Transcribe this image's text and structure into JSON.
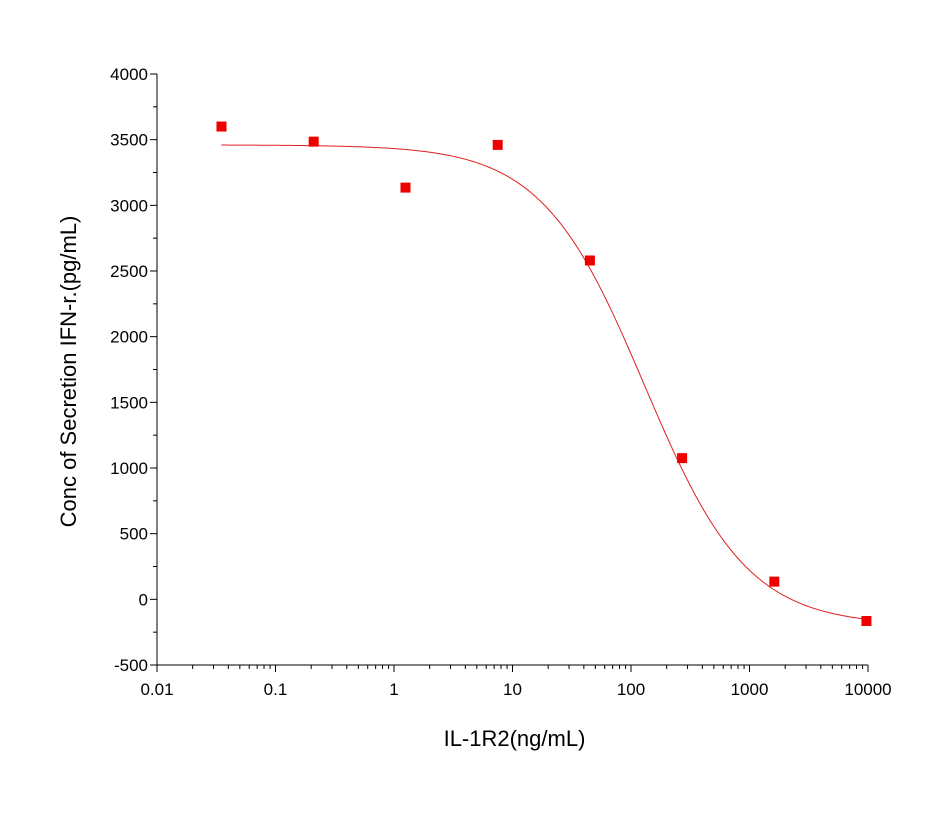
{
  "chart_data": {
    "type": "scatter",
    "xlabel": "IL-1R2(ng/mL)",
    "ylabel": "Conc of Secretion IFN-r.(pg/mL)",
    "xscale": "log",
    "xlim": [
      0.01,
      10000
    ],
    "ylim": [
      -500,
      4000
    ],
    "x_ticks": [
      0.01,
      0.1,
      1,
      10,
      100,
      1000,
      10000
    ],
    "x_tick_labels": [
      "0.01",
      "0.1",
      "1",
      "10",
      "100",
      "1000",
      "10000"
    ],
    "y_ticks": [
      -500,
      0,
      500,
      1000,
      1500,
      2000,
      2500,
      3000,
      3500,
      4000
    ],
    "y_tick_labels": [
      "-500",
      "0",
      "500",
      "1000",
      "1500",
      "2000",
      "2500",
      "3000",
      "3500",
      "4000"
    ],
    "grid": false,
    "points": {
      "x": [
        0.035,
        0.21,
        1.25,
        7.5,
        45,
        270,
        1620,
        9700
      ],
      "y": [
        3600,
        3485,
        3135,
        3460,
        2580,
        1075,
        135,
        -165
      ]
    },
    "fit": {
      "model": "4PL",
      "top": 3460,
      "bottom": -200,
      "ec50": 130,
      "hill": 1.0,
      "x_range": [
        0.035,
        9700
      ]
    },
    "marker_color": "#ee0000",
    "fit_color": "#e02020"
  }
}
